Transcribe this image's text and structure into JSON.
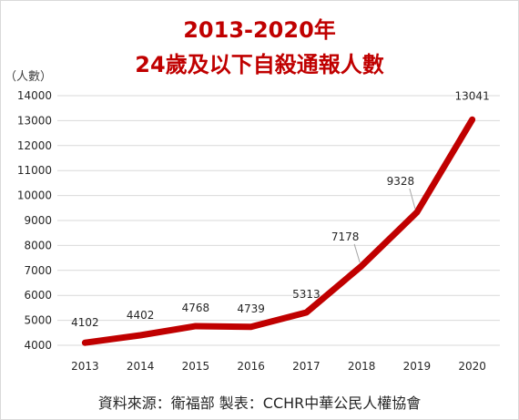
{
  "chart_data": {
    "type": "line",
    "title": "2013-2020年",
    "subtitle": "24歲及以下自殺通報人數",
    "ylabel": "（人數）",
    "xlabel": "",
    "categories": [
      "2013",
      "2014",
      "2015",
      "2016",
      "2017",
      "2018",
      "2019",
      "2020"
    ],
    "series": [
      {
        "values": [
          4102,
          4402,
          4768,
          4739,
          5313,
          7178,
          9328,
          13041
        ]
      }
    ],
    "ylim": [
      4000,
      14000
    ],
    "yticks": [
      "4000",
      "5000",
      "6000",
      "7000",
      "8000",
      "9000",
      "10000",
      "11000",
      "12000",
      "13000",
      "14000"
    ],
    "data_labels": [
      "4102",
      "4402",
      "4768",
      "4739",
      "5313",
      "7178",
      "9328",
      "13041"
    ],
    "grid": true,
    "legend": "none",
    "line_color": "#c00000",
    "grid_color": "#d9d9d9"
  },
  "source_text": "資料來源：衛福部  製表：CCHR中華公民人權協會"
}
